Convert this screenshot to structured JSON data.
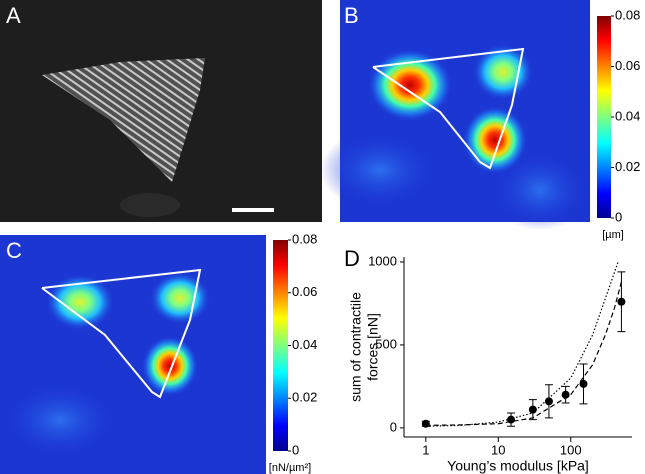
{
  "panels": {
    "a": {
      "label": "A"
    },
    "b": {
      "label": "B",
      "colorbar": {
        "lim": [
          0,
          0.08
        ],
        "ticks": [
          0,
          0.02,
          0.04,
          0.06,
          0.08
        ],
        "unit": "[µm]"
      }
    },
    "c": {
      "label": "C",
      "colorbar": {
        "lim": [
          0,
          0.08
        ],
        "ticks": [
          0,
          0.02,
          0.04,
          0.06,
          0.08
        ],
        "unit": "[nN/µm²]"
      }
    }
  },
  "chart_data": {
    "type": "scatter",
    "panel_label": "D",
    "xlabel": "Young’s modulus [kPa]",
    "ylabel": [
      "sum of contractile",
      "forces [nN]"
    ],
    "xlim": [
      0.5,
      700
    ],
    "ylim": [
      -55,
      1030
    ],
    "xticks": [
      1,
      10,
      100
    ],
    "yticks": [
      0,
      500,
      1000
    ],
    "log_x": true,
    "color": "#000000",
    "series": [
      {
        "x": [
          1,
          15,
          30,
          50,
          85,
          150,
          500
        ],
        "values": [
          25,
          50,
          110,
          160,
          200,
          265,
          760
        ],
        "errors": [
          15,
          40,
          60,
          100,
          50,
          120,
          180
        ]
      }
    ],
    "fits": [
      {
        "style": "dashed",
        "x": [
          1,
          3,
          10,
          30,
          100,
          200,
          300,
          400,
          500
        ],
        "values": [
          15,
          18,
          25,
          60,
          200,
          380,
          560,
          720,
          880
        ]
      },
      {
        "style": "dotted",
        "x": [
          1,
          3,
          10,
          30,
          100,
          200,
          300,
          450
        ],
        "values": [
          10,
          15,
          35,
          90,
          300,
          560,
          780,
          1000
        ]
      }
    ]
  }
}
